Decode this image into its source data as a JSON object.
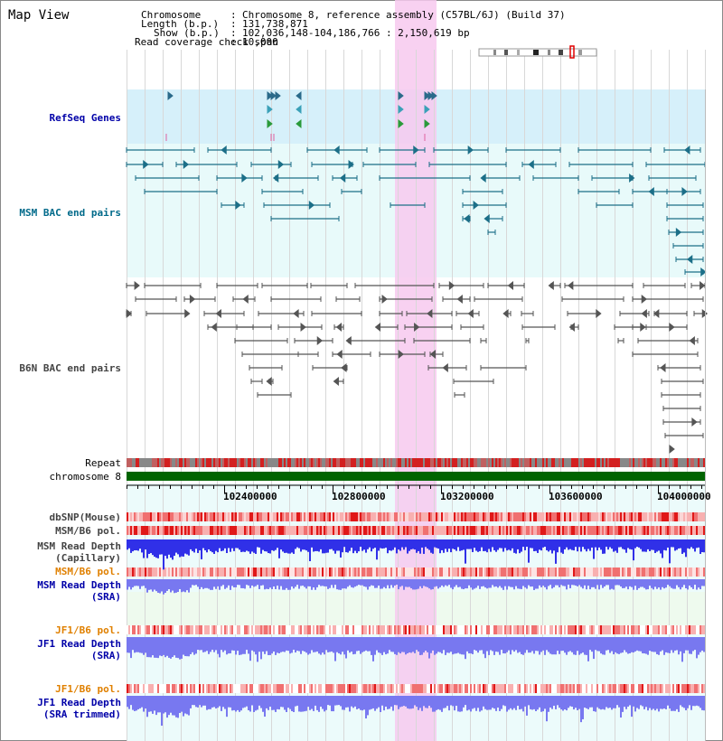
{
  "title": "Map View",
  "header": {
    "chromosome_label": "Chromosome",
    "chromosome_value": "Chromosome 8, reference assembly (C57BL/6J) (Build 37)",
    "length_label": "Length (b.p.)",
    "length_value": "131,738,871",
    "show_label": "Show (b.p.)",
    "show_value": "102,036,148-104,186,766 : 2,150,619 bp",
    "read_label": "Read coverage check span",
    "read_value": "10,000"
  },
  "tracks": {
    "refseq": "RefSeq Genes",
    "msm_bac": "MSM BAC end pairs",
    "b6n_bac": "B6N BAC end pairs",
    "repeat": "Repeat",
    "chromosome": "chromosome 8",
    "dbsnp": "dbSNP(Mouse)",
    "msm_b6_pol": "MSM/B6 pol.",
    "msm_read_depth_cap_1": "MSM Read Depth",
    "msm_read_depth_cap_2": "(Capillary)",
    "msm_b6_pol_sra": "MSM/B6 pol.",
    "msm_read_depth_sra_1": "MSM Read Depth",
    "msm_read_depth_sra_2": "(SRA)",
    "jf1_b6_pol": "JF1/B6 pol.",
    "jf1_read_depth_1": "JF1 Read Depth",
    "jf1_read_depth_2": "(SRA)",
    "jf1_b6_pol_trim": "JF1/B6 pol.",
    "jf1_read_depth_trim_1": "JF1 Read Depth",
    "jf1_read_depth_trim_2": "(SRA trimmed)"
  },
  "axis_ticks": [
    "102400000",
    "102800000",
    "103200000",
    "103600000",
    "104000000"
  ],
  "colors": {
    "refseq_bg": "#d6f0fa",
    "bac_bg": "#e8fafa",
    "highlight": "#f7c9ef",
    "chromosome": "#006400",
    "msm_feature": "#1c6f88",
    "b6n_feature": "#555555",
    "depth_dark": "#3030e8",
    "depth_light": "#7878f0"
  }
}
